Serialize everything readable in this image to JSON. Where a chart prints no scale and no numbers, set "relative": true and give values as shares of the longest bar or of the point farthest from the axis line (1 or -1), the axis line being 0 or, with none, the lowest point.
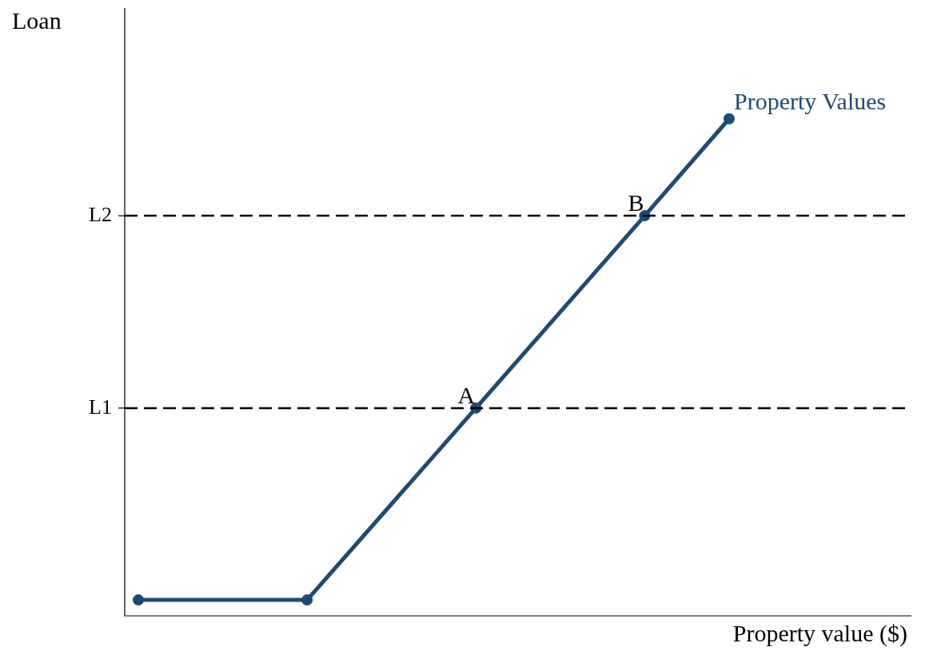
{
  "chart_data": {
    "type": "line",
    "xlabel": "Property value ($)",
    "ylabel": "Loan",
    "relative": true,
    "categories": [
      null,
      null,
      null,
      null,
      null,
      null,
      null,
      null
    ],
    "series": [
      {
        "name": "Property Values",
        "color": "#1f4a72",
        "values": [
          0.032,
          null,
          0.032,
          null,
          0.418,
          null,
          0.805,
          1
        ]
      }
    ],
    "ref_lines": [
      {
        "axis": "y",
        "value": 0.418,
        "label": "L1",
        "color": "#000000",
        "line_style": "dashed"
      },
      {
        "axis": "y",
        "value": 0.805,
        "label": "L2",
        "color": "#000000",
        "line_style": "dashed"
      }
    ],
    "annotations": [
      {
        "text": "A",
        "y": 0.418
      },
      {
        "text": "B",
        "y": 0.805
      }
    ],
    "marker": "circle",
    "line_style": "solid",
    "legend": false
  }
}
